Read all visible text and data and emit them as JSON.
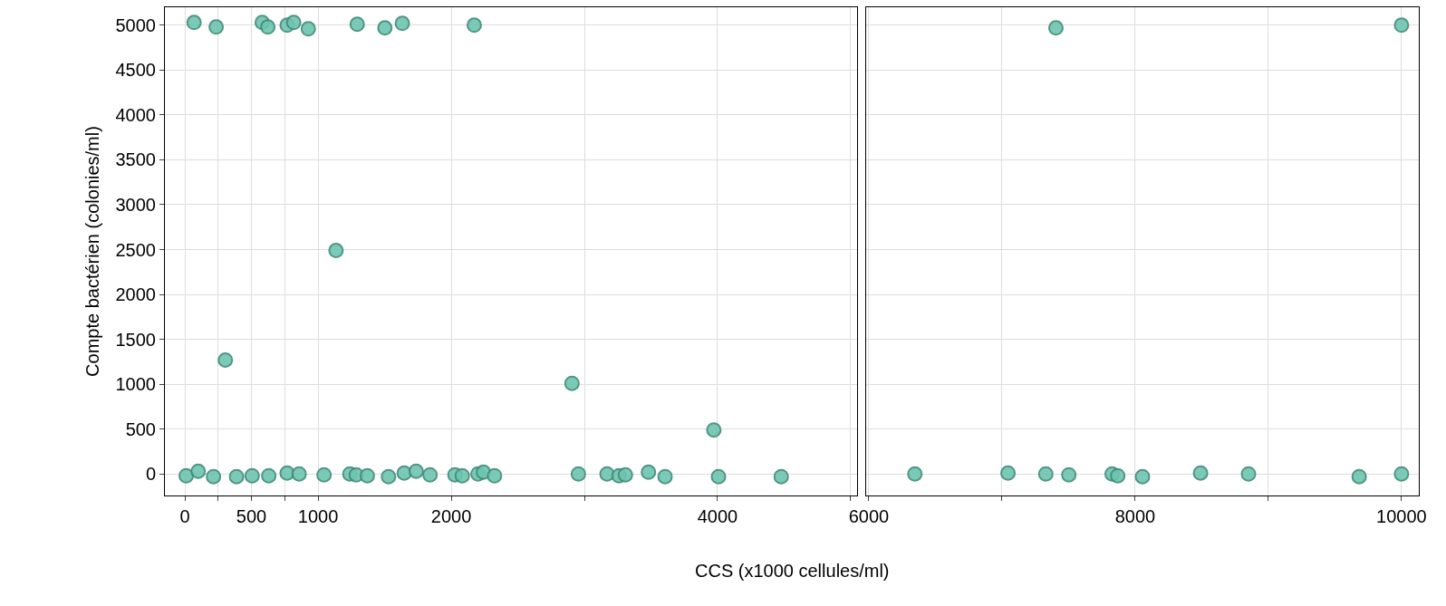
{
  "chart_data": [
    {
      "type": "scatter",
      "xlabel": "CCS (x1000 cellules/ml)",
      "ylabel": "Compte bactérien (colonies/ml)",
      "xlim": [
        -150,
        5050
      ],
      "ylim": [
        -240,
        5200
      ],
      "xticks": [
        0,
        {
          "value": 250,
          "label": null
        },
        500,
        {
          "value": 750,
          "label": null
        },
        1000,
        2000,
        {
          "value": 3000,
          "label": null
        },
        4000,
        {
          "value": 5000,
          "label": null
        }
      ],
      "yticks": [
        0,
        500,
        1000,
        1500,
        2000,
        2500,
        3000,
        3500,
        4000,
        4500,
        5000
      ],
      "grid": true,
      "marker": "circle",
      "series": [
        {
          "color": "#6cc5b0",
          "x": [
            69,
            235,
            581,
            623,
            768,
            817,
            927,
            1294,
            1502,
            1633,
            2173,
            1135,
            304,
            2907,
            3972,
            10,
            100,
            215,
            388,
            505,
            630,
            768,
            858,
            1045,
            1239,
            1287,
            1370,
            1529,
            1647,
            1737,
            1841,
            2028,
            2083,
            2201,
            2242,
            2325,
            2955,
            3170,
            3260,
            3308,
            3481,
            3606,
            4007,
            4478
          ],
          "values": [
            5030,
            4980,
            5030,
            4980,
            5000,
            5030,
            4960,
            5010,
            4970,
            5020,
            5000,
            2490,
            1270,
            1010,
            490,
            -20,
            30,
            -30,
            -30,
            -20,
            -20,
            10,
            0,
            -10,
            0,
            -10,
            -20,
            -30,
            10,
            30,
            -10,
            -10,
            -20,
            0,
            20,
            -20,
            0,
            0,
            -20,
            -10,
            20,
            -30,
            -30,
            -30
          ]
        }
      ]
    },
    {
      "type": "scatter",
      "xlim": [
        5980,
        10130
      ],
      "ylim": [
        -240,
        5200
      ],
      "xticks": [
        6000,
        {
          "value": 7000,
          "label": null
        },
        8000,
        {
          "value": 9000,
          "label": null
        },
        10000
      ],
      "yticks": [
        0,
        500,
        1000,
        1500,
        2000,
        2500,
        3000,
        3500,
        4000,
        4500,
        5000
      ],
      "grid": true,
      "marker": "circle",
      "tick_labels": "x",
      "series": [
        {
          "color": "#6cc5b0",
          "x": [
            7405,
            10000,
            6346,
            7045,
            7329,
            7502,
            7827,
            7869,
            8055,
            8491,
            8851,
            9682,
            10000
          ],
          "values": [
            4970,
            5000,
            0,
            10,
            0,
            -10,
            0,
            -20,
            -30,
            10,
            0,
            -30,
            0
          ]
        }
      ]
    }
  ]
}
